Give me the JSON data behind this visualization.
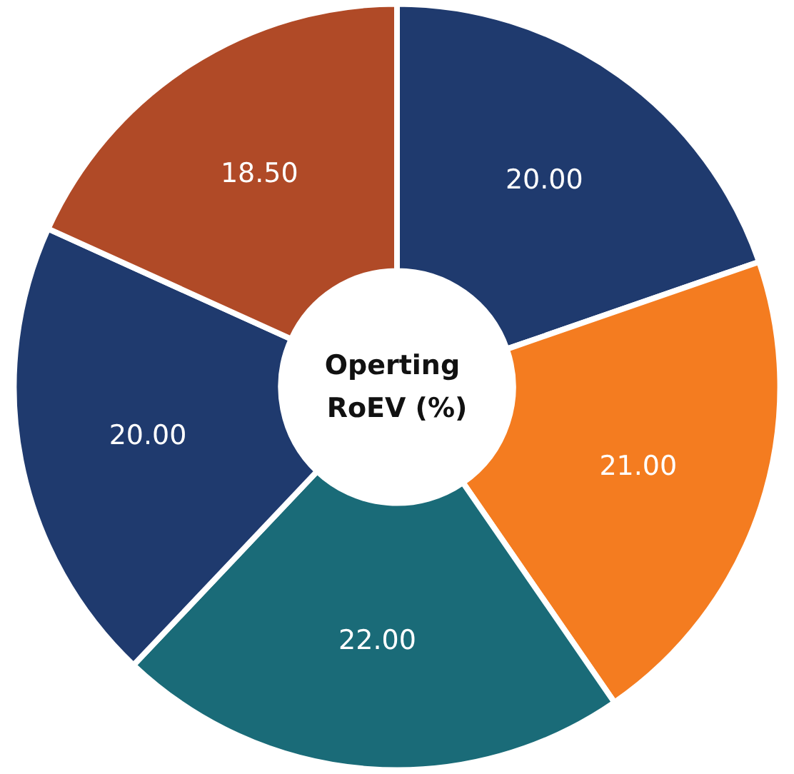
{
  "chart_data": {
    "type": "donut",
    "title": "Operting RoEV (%)",
    "categories": [
      null,
      null,
      null,
      null,
      null
    ],
    "values": [
      20,
      21,
      22,
      20,
      18.5
    ],
    "value_labels": [
      "20.00",
      "21.00",
      "22.00",
      "20.00",
      "18.50"
    ],
    "colors": [
      "#1f3a6e",
      "#f47c20",
      "#1a6b78",
      "#1f3a6e",
      "#b04a27"
    ]
  }
}
